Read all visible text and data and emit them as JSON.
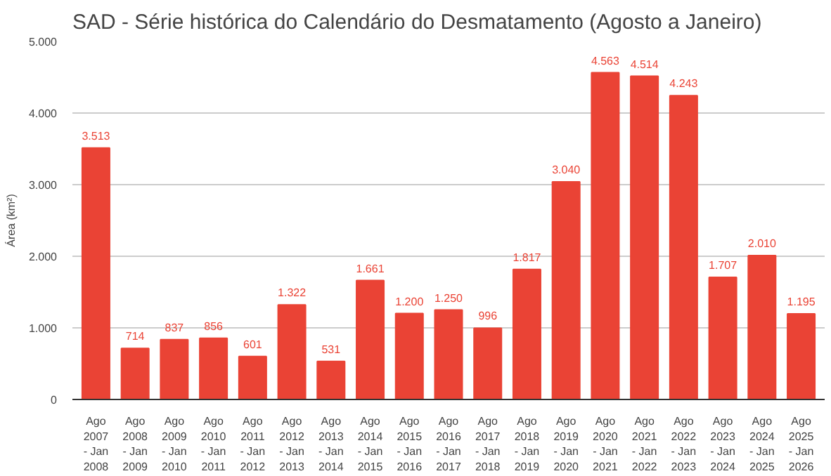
{
  "chart_data": {
    "type": "bar",
    "title": "SAD - Série histórica do Calendário do Desmatamento (Agosto a Janeiro)",
    "ylabel": "Área (km²)",
    "categories": [
      "Ago\n2007\n- Jan\n2008",
      "Ago\n2008\n- Jan\n2009",
      "Ago\n2009\n- Jan\n2010",
      "Ago\n2010\n- Jan\n2011",
      "Ago\n2011\n- Jan\n2012",
      "Ago\n2012\n- Jan\n2013",
      "Ago\n2013\n- Jan\n2014",
      "Ago\n2014\n- Jan\n2015",
      "Ago\n2015\n- Jan\n2016",
      "Ago\n2016\n- Jan\n2017",
      "Ago\n2017\n- Jan\n2018",
      "Ago\n2018\n- Jan\n2019",
      "Ago\n2019\n- Jan\n2020",
      "Ago\n2020\n- Jan\n2021",
      "Ago\n2021\n- Jan\n2022",
      "Ago\n2022\n- Jan\n2023",
      "Ago\n2023\n- Jan\n2024",
      "Ago\n2024\n- Jan\n2025",
      "Ago\n2025\n- Jan\n2026"
    ],
    "values": [
      3513,
      714,
      837,
      856,
      601,
      1322,
      531,
      1661,
      1200,
      1250,
      996,
      1817,
      3040,
      4563,
      4514,
      4243,
      1707,
      2010,
      1195
    ],
    "color": "#ea4335",
    "ylim": [
      0,
      5000
    ],
    "yticks": [
      {
        "value": 0,
        "label": "0"
      },
      {
        "value": 1000,
        "label": "1.000"
      },
      {
        "value": 2000,
        "label": "2.000"
      },
      {
        "value": 3000,
        "label": "3.000"
      },
      {
        "value": 4000,
        "label": "4.000"
      },
      {
        "value": 5000,
        "label": "5.000"
      }
    ],
    "value_labels": [
      "3.513",
      "714",
      "837",
      "856",
      "601",
      "1.322",
      "531",
      "1.661",
      "1.200",
      "1.250",
      "996",
      "1.817",
      "3.040",
      "4.563",
      "4.514",
      "4.243",
      "1.707",
      "2.010",
      "1.195"
    ],
    "grid": "y"
  }
}
